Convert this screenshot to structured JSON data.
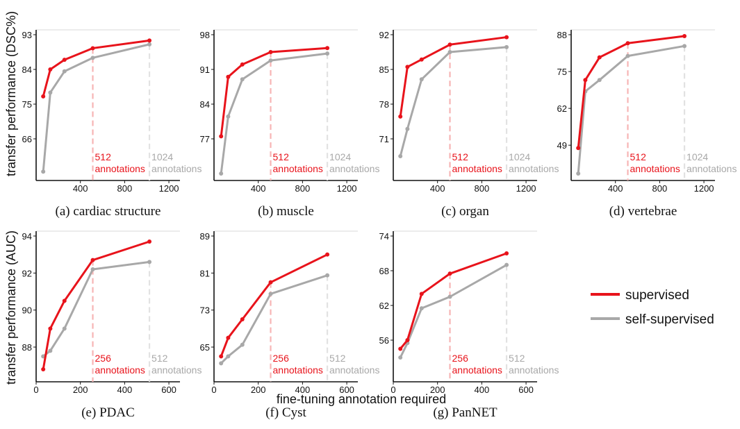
{
  "figure": {
    "ylabel_top": "transfer performance (DSC%)",
    "ylabel_bottom": "transfer performance (AUC)",
    "xlabel": "fine-tuning annotation required"
  },
  "legend": {
    "items": [
      {
        "label": "supervised",
        "color": "#e8131b"
      },
      {
        "label": "self-supervised",
        "color": "#a8a8a8"
      }
    ]
  },
  "colors": {
    "supervised": "#e8131b",
    "self_supervised": "#a8a8a8",
    "red_dash": "#f7b4b4",
    "gray_dash": "#e2e2e2"
  },
  "chart_data": [
    {
      "type": "line",
      "caption": "(a) cardiac structure",
      "xlim": [
        0,
        1300
      ],
      "ylim": [
        57,
        93
      ],
      "xticks": [
        400,
        800,
        1200
      ],
      "yticks": [
        66,
        75,
        84,
        93
      ],
      "series": [
        {
          "name": "supervised",
          "x": [
            64,
            128,
            256,
            512,
            1024
          ],
          "values": [
            77,
            84,
            86.5,
            89.5,
            91.5
          ]
        },
        {
          "name": "self-supervised",
          "x": [
            64,
            128,
            256,
            512,
            1024
          ],
          "values": [
            57.5,
            78,
            83.5,
            87,
            90.5
          ]
        }
      ],
      "annotations": [
        {
          "x": 512,
          "lines": [
            "512",
            "annotations"
          ],
          "style": "supervised"
        },
        {
          "x": 1024,
          "lines": [
            "1024",
            "annotations"
          ],
          "style": "self_supervised"
        }
      ]
    },
    {
      "type": "line",
      "caption": "(b) muscle",
      "xlim": [
        0,
        1300
      ],
      "ylim": [
        70,
        98
      ],
      "xticks": [
        400,
        800,
        1200
      ],
      "yticks": [
        77,
        84,
        91,
        98
      ],
      "series": [
        {
          "name": "supervised",
          "x": [
            64,
            128,
            256,
            512,
            1024
          ],
          "values": [
            77.5,
            89.5,
            92,
            94.5,
            95.3
          ]
        },
        {
          "name": "self-supervised",
          "x": [
            64,
            128,
            256,
            512,
            1024
          ],
          "values": [
            70,
            81.5,
            89,
            92.8,
            94.2
          ]
        }
      ],
      "annotations": [
        {
          "x": 512,
          "lines": [
            "512",
            "annotations"
          ],
          "style": "supervised"
        },
        {
          "x": 1024,
          "lines": [
            "1024",
            "annotations"
          ],
          "style": "self_supervised"
        }
      ]
    },
    {
      "type": "line",
      "caption": "(c) organ",
      "xlim": [
        0,
        1300
      ],
      "ylim": [
        64,
        92
      ],
      "xticks": [
        400,
        800,
        1200
      ],
      "yticks": [
        71,
        78,
        85,
        92
      ],
      "series": [
        {
          "name": "supervised",
          "x": [
            64,
            128,
            256,
            512,
            1024
          ],
          "values": [
            75.5,
            85.5,
            87,
            90,
            91.5
          ]
        },
        {
          "name": "self-supervised",
          "x": [
            64,
            128,
            256,
            512,
            1024
          ],
          "values": [
            67.5,
            73,
            83,
            88.5,
            89.5
          ]
        }
      ],
      "annotations": [
        {
          "x": 512,
          "lines": [
            "512",
            "annotations"
          ],
          "style": "supervised"
        },
        {
          "x": 1024,
          "lines": [
            "1024",
            "annotations"
          ],
          "style": "self_supervised"
        }
      ]
    },
    {
      "type": "line",
      "caption": "(d) vertebrae",
      "xlim": [
        0,
        1300
      ],
      "ylim": [
        39,
        88
      ],
      "xticks": [
        400,
        800,
        1200
      ],
      "yticks": [
        49,
        62,
        75,
        88
      ],
      "series": [
        {
          "name": "supervised",
          "x": [
            64,
            128,
            256,
            512,
            1024
          ],
          "values": [
            48,
            72,
            80,
            85,
            87.5
          ]
        },
        {
          "name": "self-supervised",
          "x": [
            64,
            128,
            256,
            512,
            1024
          ],
          "values": [
            39,
            68,
            72,
            80.5,
            84
          ]
        }
      ],
      "annotations": [
        {
          "x": 512,
          "lines": [
            "512",
            "annotations"
          ],
          "style": "supervised"
        },
        {
          "x": 1024,
          "lines": [
            "1024",
            "annotations"
          ],
          "style": "self_supervised"
        }
      ]
    },
    {
      "type": "line",
      "caption": "(e) PDAC",
      "xlim": [
        0,
        650
      ],
      "ylim": [
        86.5,
        94
      ],
      "xticks": [
        0,
        200,
        400,
        600
      ],
      "yticks": [
        88,
        90,
        92,
        94
      ],
      "series": [
        {
          "name": "supervised",
          "x": [
            32,
            64,
            128,
            256,
            512
          ],
          "values": [
            86.8,
            89,
            90.5,
            92.7,
            93.7
          ]
        },
        {
          "name": "self-supervised",
          "x": [
            32,
            64,
            128,
            256,
            512
          ],
          "values": [
            87.5,
            87.8,
            89,
            92.2,
            92.6
          ]
        }
      ],
      "annotations": [
        {
          "x": 256,
          "lines": [
            "256",
            "annotations"
          ],
          "style": "supervised"
        },
        {
          "x": 512,
          "lines": [
            "512",
            "annotations"
          ],
          "style": "self_supervised"
        }
      ]
    },
    {
      "type": "line",
      "caption": "(f) Cyst",
      "xlim": [
        0,
        650
      ],
      "ylim": [
        59,
        89
      ],
      "xticks": [
        0,
        200,
        400,
        600
      ],
      "yticks": [
        65,
        73,
        81,
        89
      ],
      "series": [
        {
          "name": "supervised",
          "x": [
            32,
            64,
            128,
            256,
            512
          ],
          "values": [
            63,
            67,
            71,
            79,
            85
          ]
        },
        {
          "name": "self-supervised",
          "x": [
            32,
            64,
            128,
            256,
            512
          ],
          "values": [
            61.5,
            63,
            65.5,
            76.5,
            80.5
          ]
        }
      ],
      "annotations": [
        {
          "x": 256,
          "lines": [
            "256",
            "annotations"
          ],
          "style": "supervised"
        },
        {
          "x": 512,
          "lines": [
            "512",
            "annotations"
          ],
          "style": "self_supervised"
        }
      ]
    },
    {
      "type": "line",
      "caption": "(g) PanNET",
      "xlim": [
        0,
        650
      ],
      "ylim": [
        50,
        74
      ],
      "xticks": [
        0,
        200,
        400,
        600
      ],
      "yticks": [
        56,
        62,
        68,
        74
      ],
      "series": [
        {
          "name": "supervised",
          "x": [
            32,
            64,
            128,
            256,
            512
          ],
          "values": [
            54.5,
            56,
            64,
            67.5,
            71
          ]
        },
        {
          "name": "self-supervised",
          "x": [
            32,
            64,
            128,
            256,
            512
          ],
          "values": [
            53,
            55.5,
            61.5,
            63.5,
            69
          ]
        }
      ],
      "annotations": [
        {
          "x": 256,
          "lines": [
            "256",
            "annotations"
          ],
          "style": "supervised"
        },
        {
          "x": 512,
          "lines": [
            "512",
            "annotations"
          ],
          "style": "self_supervised"
        }
      ]
    }
  ]
}
